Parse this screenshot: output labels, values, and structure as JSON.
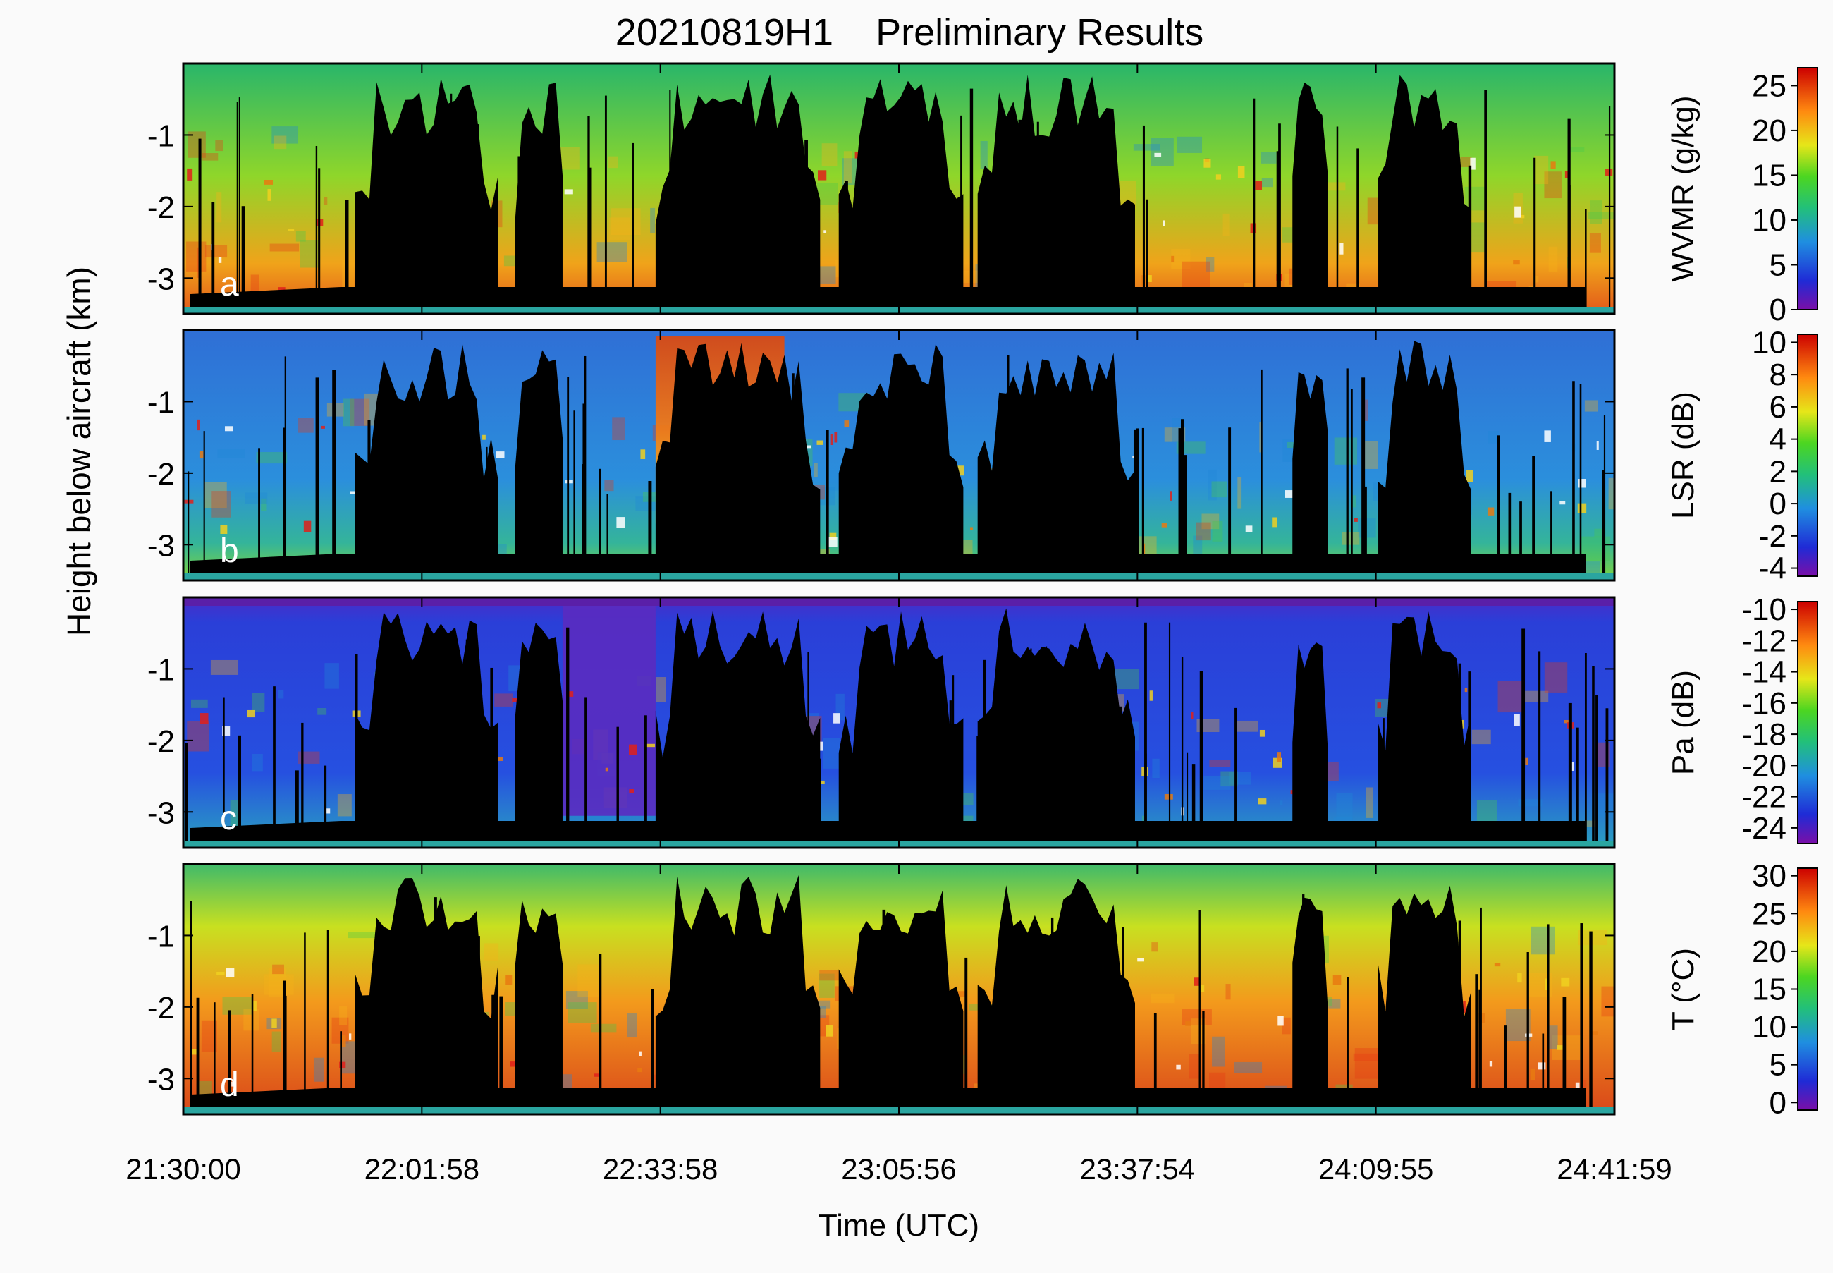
{
  "chart_data": [
    {
      "type": "heatmap",
      "panel_label": "a",
      "title": "",
      "colorbar_label": "WVMR (g/kg)",
      "colorbar_ticks": [
        "0",
        "5",
        "10",
        "15",
        "20",
        "25"
      ],
      "colorbar_range": [
        0,
        27
      ],
      "y_ticks": [
        "-1",
        "-2",
        "-3"
      ]
    },
    {
      "type": "heatmap",
      "panel_label": "b",
      "colorbar_label": "LSR (dB)",
      "colorbar_ticks": [
        "-4",
        "-2",
        "0",
        "2",
        "4",
        "6",
        "8",
        "10"
      ],
      "colorbar_range": [
        -4.5,
        10.5
      ],
      "y_ticks": [
        "-1",
        "-2",
        "-3"
      ]
    },
    {
      "type": "heatmap",
      "panel_label": "c",
      "colorbar_label": "Pa (dB)",
      "colorbar_ticks": [
        "-24",
        "-22",
        "-20",
        "-18",
        "-16",
        "-14",
        "-12",
        "-10"
      ],
      "colorbar_range": [
        -25,
        -9.5
      ],
      "y_ticks": [
        "-1",
        "-2",
        "-3"
      ]
    },
    {
      "type": "heatmap",
      "panel_label": "d",
      "colorbar_label": "T (°C)",
      "colorbar_ticks": [
        "0",
        "5",
        "10",
        "15",
        "20",
        "25",
        "30"
      ],
      "colorbar_range": [
        -1,
        31
      ],
      "y_ticks": [
        "-1",
        "-2",
        "-3"
      ]
    }
  ],
  "figure": {
    "title": "20210819H1    Preliminary Results",
    "xlabel": "Time (UTC)",
    "ylabel": "Height below aircraft (km)",
    "x_ticks": [
      "21:30:00",
      "22:01:58",
      "22:33:58",
      "23:05:56",
      "23:37:54",
      "24:09:55",
      "24:41:59"
    ],
    "y_range": [
      -3.5,
      0
    ]
  }
}
